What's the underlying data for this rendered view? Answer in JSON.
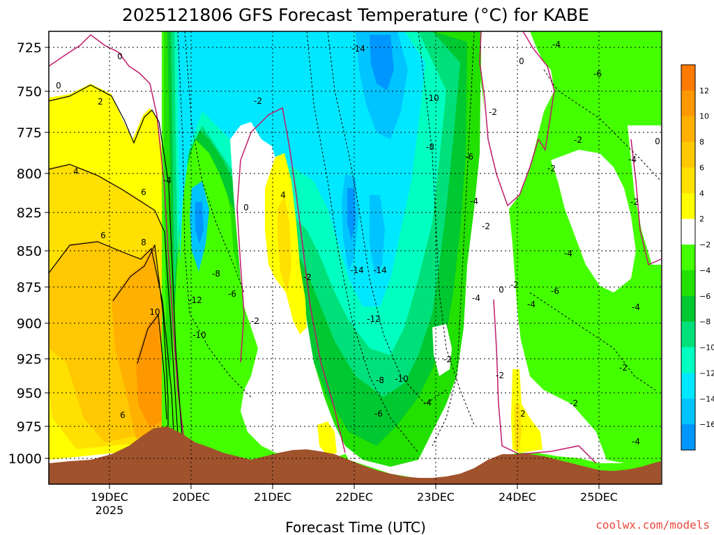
{
  "chart_data": {
    "type": "heatmap",
    "title": "2025121806 GFS Forecast Temperature (°C) for KABE",
    "xlabel": "Forecast Time (UTC)",
    "ylabel": "",
    "y_ticks": [
      "725",
      "750",
      "775",
      "800",
      "825",
      "850",
      "875",
      "900",
      "925",
      "950",
      "975",
      "1000"
    ],
    "ylim": [
      712,
      1016
    ],
    "x_ticks": [
      "19DEC",
      "20DEC",
      "21DEC",
      "22DEC",
      "23DEC",
      "24DEC",
      "25DEC"
    ],
    "x_year": "2025",
    "xlim_days": [
      18.25,
      25.75
    ],
    "colorbar": {
      "ticks": [
        "12",
        "10",
        "8",
        "6",
        "4",
        "2",
        "−2",
        "−4",
        "−6",
        "−8",
        "−10",
        "−12",
        "−14",
        "−16"
      ],
      "colors": [
        "#ff7a00",
        "#ff9800",
        "#ffb000",
        "#ffc800",
        "#ffe000",
        "#ffff00",
        "#ffffff",
        "#44ff00",
        "#22e000",
        "#00c830",
        "#00e07a",
        "#00ffc0",
        "#00e8ff",
        "#00c4ff",
        "#0096ff"
      ]
    },
    "contour_labels": [
      "0",
      "0",
      "2",
      "4",
      "6",
      "6",
      "8",
      "10",
      "6",
      "-4",
      "-12",
      "-10",
      "-8",
      "-6",
      "-2",
      "-2",
      "0",
      "4",
      "-2",
      "-14",
      "-10",
      "-8",
      "-6",
      "-14",
      "-14",
      "-12",
      "-8",
      "-10",
      "-6",
      "-4",
      "-4",
      "-2",
      "-2",
      "-4",
      "0",
      "-2",
      "-4",
      "-6",
      "-2",
      "-4",
      "-2",
      "0",
      "2",
      "-4",
      "-6",
      "-2",
      "-4",
      "-2",
      "0",
      "-2",
      "-4",
      "-2",
      "-2",
      "-4"
    ]
  },
  "credit": "coolwx.com/models"
}
